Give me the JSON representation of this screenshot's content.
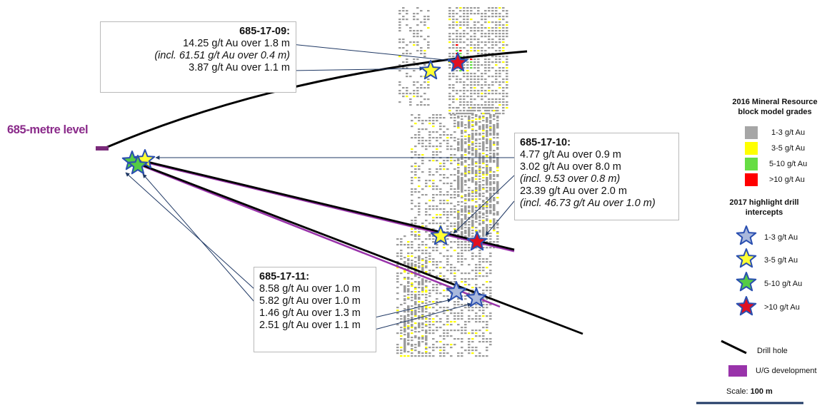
{
  "level_label": "685-metre level",
  "holes": [
    {
      "id": "685-17-09",
      "title": "685-17-09:",
      "lines": [
        {
          "text": "14.25 g/t Au over 1.8 m",
          "italic": false
        },
        {
          "text": "(incl. 61.51 g/t Au over 0.4 m)",
          "italic": true
        },
        {
          "text": "3.87 g/t Au over 1.1 m",
          "italic": false
        }
      ]
    },
    {
      "id": "685-17-10",
      "title": "685-17-10:",
      "lines": [
        {
          "text": "4.77 g/t Au over 0.9 m",
          "italic": false
        },
        {
          "text": "3.02 g/t Au over 8.0 m",
          "italic": false
        },
        {
          "text": "(incl. 9.53 over 0.8 m)",
          "italic": true
        },
        {
          "text": "23.39 g/t Au over 2.0 m",
          "italic": false
        },
        {
          "text": "(incl. 46.73 g/t Au over 1.0 m)",
          "italic": true
        }
      ]
    },
    {
      "id": "685-17-11",
      "title": "685-17-11:",
      "lines": [
        {
          "text": "8.58 g/t Au over 1.0 m",
          "italic": false
        },
        {
          "text": "5.82 g/t Au over 1.0 m",
          "italic": false
        },
        {
          "text": "1.46 g/t Au over 1.3 m",
          "italic": false
        },
        {
          "text": "2.51 g/t Au over 1.1 m",
          "italic": false
        }
      ]
    }
  ],
  "legend": {
    "resource_title": "2016 Mineral Resource block model grades",
    "grades": [
      {
        "label": "1-3 g/t Au",
        "color": "#a6a6a6"
      },
      {
        "label": "3-5 g/t Au",
        "color": "#ffff00"
      },
      {
        "label": "5-10 g/t Au",
        "color": "#66dd44"
      },
      {
        "label": ">10 g/t Au",
        "color": "#ff0000"
      }
    ],
    "intercepts_title": "2017 highlight drill intercepts",
    "intercepts": [
      {
        "label": "1-3 g/t Au",
        "color": "#a9b8dc"
      },
      {
        "label": "3-5 g/t Au",
        "color": "#ffff33"
      },
      {
        "label": "5-10 g/t Au",
        "color": "#55cc44"
      },
      {
        "label": ">10 g/t Au",
        "color": "#e01020"
      }
    ],
    "drill_hole": "Drill hole",
    "ug_development": "U/G development",
    "ug_color": "#9933aa",
    "scale_prefix": "Scale: ",
    "scale_value": "100 m"
  }
}
